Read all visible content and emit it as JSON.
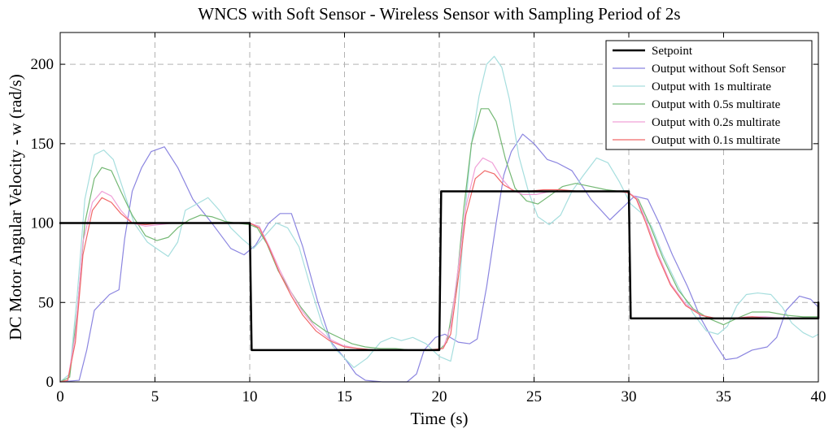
{
  "chart_data": {
    "type": "line",
    "title": "WNCS with Soft Sensor - Wireless Sensor with Sampling Period of 2s",
    "xlabel": "Time (s)",
    "ylabel": "DC Motor Angular Velocity - w (rad/s)",
    "xlim": [
      0,
      40
    ],
    "ylim": [
      0,
      220
    ],
    "xticks": [
      0,
      5,
      10,
      15,
      20,
      25,
      30,
      35,
      40
    ],
    "yticks": [
      0,
      50,
      100,
      150,
      200
    ],
    "grid": true,
    "legend_position": "top-right",
    "series": [
      {
        "name": "Setpoint",
        "color": "#000000",
        "points": [
          [
            0,
            100
          ],
          [
            10,
            100
          ],
          [
            10.1,
            20
          ],
          [
            20,
            20
          ],
          [
            20.1,
            120
          ],
          [
            30,
            120
          ],
          [
            30.1,
            40
          ],
          [
            40,
            40
          ],
          [
            40,
            50
          ]
        ]
      },
      {
        "name": "Output without Soft Sensor",
        "color": "#8b85e0",
        "points": [
          [
            0,
            0
          ],
          [
            1,
            1
          ],
          [
            1.4,
            20
          ],
          [
            1.8,
            45
          ],
          [
            2.2,
            50
          ],
          [
            2.6,
            55
          ],
          [
            3.1,
            58
          ],
          [
            3.4,
            90
          ],
          [
            3.8,
            120
          ],
          [
            4.3,
            135
          ],
          [
            4.8,
            145
          ],
          [
            5.5,
            148
          ],
          [
            6.2,
            135
          ],
          [
            7,
            115
          ],
          [
            8,
            100
          ],
          [
            9,
            84
          ],
          [
            9.7,
            80
          ],
          [
            10.3,
            86
          ],
          [
            11,
            100
          ],
          [
            11.6,
            106
          ],
          [
            12.2,
            106
          ],
          [
            12.8,
            85
          ],
          [
            13.6,
            50
          ],
          [
            14.3,
            25
          ],
          [
            15,
            15
          ],
          [
            15.6,
            5
          ],
          [
            16.1,
            1
          ],
          [
            17,
            0
          ],
          [
            18.3,
            0
          ],
          [
            18.8,
            5
          ],
          [
            19.2,
            20
          ],
          [
            19.8,
            28
          ],
          [
            20.3,
            30
          ],
          [
            21,
            25
          ],
          [
            21.6,
            24
          ],
          [
            22,
            27
          ],
          [
            22.5,
            60
          ],
          [
            23,
            100
          ],
          [
            23.4,
            130
          ],
          [
            23.8,
            145
          ],
          [
            24.4,
            156
          ],
          [
            25,
            150
          ],
          [
            25.7,
            140
          ],
          [
            26.2,
            138
          ],
          [
            27,
            133
          ],
          [
            28,
            115
          ],
          [
            29,
            102
          ],
          [
            29.7,
            110
          ],
          [
            30.3,
            117
          ],
          [
            31,
            115
          ],
          [
            31.6,
            100
          ],
          [
            32.3,
            80
          ],
          [
            33.1,
            60
          ],
          [
            33.8,
            40
          ],
          [
            34.5,
            25
          ],
          [
            35.1,
            14
          ],
          [
            35.7,
            15
          ],
          [
            36.5,
            20
          ],
          [
            37.3,
            22
          ],
          [
            37.8,
            28
          ],
          [
            38.3,
            45
          ],
          [
            39,
            54
          ],
          [
            39.6,
            52
          ],
          [
            40,
            47
          ]
        ]
      },
      {
        "name": "Output with 1s multirate",
        "color": "#a6dede",
        "points": [
          [
            0,
            0
          ],
          [
            0.5,
            5
          ],
          [
            0.9,
            55
          ],
          [
            1.3,
            115
          ],
          [
            1.8,
            143
          ],
          [
            2.3,
            146
          ],
          [
            2.8,
            140
          ],
          [
            3.3,
            122
          ],
          [
            3.9,
            100
          ],
          [
            4.6,
            88
          ],
          [
            5.2,
            83
          ],
          [
            5.7,
            79
          ],
          [
            6.2,
            88
          ],
          [
            6.6,
            108
          ],
          [
            7.2,
            112
          ],
          [
            7.8,
            116
          ],
          [
            8.4,
            108
          ],
          [
            9,
            97
          ],
          [
            9.6,
            90
          ],
          [
            10.2,
            84
          ],
          [
            10.8,
            92
          ],
          [
            11.4,
            100
          ],
          [
            12,
            97
          ],
          [
            12.6,
            85
          ],
          [
            13.2,
            60
          ],
          [
            13.8,
            37
          ],
          [
            14.4,
            22
          ],
          [
            15,
            15
          ],
          [
            15.5,
            9
          ],
          [
            16.2,
            15
          ],
          [
            16.9,
            25
          ],
          [
            17.5,
            28
          ],
          [
            18,
            26
          ],
          [
            18.6,
            28
          ],
          [
            19.3,
            24
          ],
          [
            20,
            16
          ],
          [
            20.6,
            13
          ],
          [
            20.9,
            30
          ],
          [
            21.3,
            100
          ],
          [
            21.7,
            150
          ],
          [
            22.1,
            180
          ],
          [
            22.5,
            200
          ],
          [
            22.9,
            205
          ],
          [
            23.3,
            198
          ],
          [
            23.7,
            178
          ],
          [
            24.2,
            142
          ],
          [
            24.7,
            120
          ],
          [
            25.2,
            104
          ],
          [
            25.8,
            99
          ],
          [
            26.4,
            105
          ],
          [
            27,
            120
          ],
          [
            27.6,
            130
          ],
          [
            28.3,
            141
          ],
          [
            28.9,
            138
          ],
          [
            29.5,
            126
          ],
          [
            30.1,
            112
          ],
          [
            30.6,
            107
          ],
          [
            31.2,
            98
          ],
          [
            31.8,
            80
          ],
          [
            32.6,
            60
          ],
          [
            33.4,
            43
          ],
          [
            34.1,
            32
          ],
          [
            34.7,
            30
          ],
          [
            35.2,
            35
          ],
          [
            35.7,
            48
          ],
          [
            36.2,
            55
          ],
          [
            36.8,
            56
          ],
          [
            37.5,
            55
          ],
          [
            38.1,
            47
          ],
          [
            38.6,
            37
          ],
          [
            39.2,
            31
          ],
          [
            39.7,
            28
          ],
          [
            40,
            30
          ]
        ]
      },
      {
        "name": "Output with 0.5s multirate",
        "color": "#74b874",
        "points": [
          [
            0,
            0
          ],
          [
            0.5,
            3
          ],
          [
            0.9,
            45
          ],
          [
            1.3,
            100
          ],
          [
            1.8,
            128
          ],
          [
            2.2,
            135
          ],
          [
            2.7,
            133
          ],
          [
            3.2,
            120
          ],
          [
            3.8,
            105
          ],
          [
            4.5,
            92
          ],
          [
            5.1,
            89
          ],
          [
            5.7,
            91
          ],
          [
            6.2,
            97
          ],
          [
            6.8,
            102
          ],
          [
            7.4,
            105
          ],
          [
            8,
            104
          ],
          [
            8.7,
            101
          ],
          [
            9.3,
            100
          ],
          [
            10,
            99
          ],
          [
            10.4,
            97
          ],
          [
            10.9,
            87
          ],
          [
            11.5,
            70
          ],
          [
            12.1,
            58
          ],
          [
            12.7,
            47
          ],
          [
            13.3,
            38
          ],
          [
            14,
            32
          ],
          [
            14.7,
            28
          ],
          [
            15.4,
            24
          ],
          [
            16.1,
            22
          ],
          [
            16.9,
            21
          ],
          [
            17.7,
            21
          ],
          [
            18.5,
            20
          ],
          [
            19.3,
            20
          ],
          [
            20,
            20
          ],
          [
            20.4,
            25
          ],
          [
            20.9,
            60
          ],
          [
            21.3,
            110
          ],
          [
            21.7,
            150
          ],
          [
            22.2,
            172
          ],
          [
            22.6,
            172
          ],
          [
            23,
            164
          ],
          [
            23.5,
            140
          ],
          [
            24,
            122
          ],
          [
            24.6,
            114
          ],
          [
            25.2,
            112
          ],
          [
            25.8,
            117
          ],
          [
            26.5,
            123
          ],
          [
            27.2,
            125
          ],
          [
            28,
            123
          ],
          [
            28.8,
            121
          ],
          [
            29.5,
            120
          ],
          [
            30,
            119
          ],
          [
            30.5,
            115
          ],
          [
            31.1,
            99
          ],
          [
            31.8,
            78
          ],
          [
            32.6,
            58
          ],
          [
            33.4,
            46
          ],
          [
            34.2,
            40
          ],
          [
            35,
            36
          ],
          [
            35.7,
            40
          ],
          [
            36.5,
            44
          ],
          [
            37.4,
            44
          ],
          [
            38.3,
            42
          ],
          [
            39.2,
            41
          ],
          [
            40,
            41
          ]
        ]
      },
      {
        "name": "Output with 0.2s multirate",
        "color": "#f0a0d8",
        "points": [
          [
            0,
            0
          ],
          [
            0.4,
            1
          ],
          [
            0.8,
            30
          ],
          [
            1.2,
            88
          ],
          [
            1.7,
            113
          ],
          [
            2.2,
            120
          ],
          [
            2.7,
            117
          ],
          [
            3.2,
            108
          ],
          [
            3.8,
            100
          ],
          [
            4.5,
            98
          ],
          [
            5.2,
            99
          ],
          [
            6,
            100
          ],
          [
            7,
            100
          ],
          [
            8,
            100
          ],
          [
            9,
            100
          ],
          [
            10,
            100
          ],
          [
            10.5,
            98
          ],
          [
            11,
            86
          ],
          [
            11.6,
            70
          ],
          [
            12.2,
            56
          ],
          [
            12.8,
            44
          ],
          [
            13.5,
            34
          ],
          [
            14.2,
            27
          ],
          [
            14.9,
            23
          ],
          [
            15.7,
            21
          ],
          [
            16.5,
            20
          ],
          [
            17.5,
            20
          ],
          [
            18.5,
            20
          ],
          [
            19.5,
            20
          ],
          [
            20.2,
            21
          ],
          [
            20.6,
            35
          ],
          [
            21,
            72
          ],
          [
            21.4,
            110
          ],
          [
            21.9,
            135
          ],
          [
            22.3,
            141
          ],
          [
            22.8,
            138
          ],
          [
            23.3,
            128
          ],
          [
            23.8,
            121
          ],
          [
            24.4,
            118
          ],
          [
            25.1,
            118
          ],
          [
            25.9,
            120
          ],
          [
            26.7,
            120
          ],
          [
            27.6,
            120
          ],
          [
            28.5,
            120
          ],
          [
            29.4,
            120
          ],
          [
            30,
            119
          ],
          [
            30.4,
            116
          ],
          [
            30.9,
            102
          ],
          [
            31.5,
            82
          ],
          [
            32.2,
            62
          ],
          [
            33,
            49
          ],
          [
            33.8,
            42
          ],
          [
            34.6,
            40
          ],
          [
            35.4,
            40
          ],
          [
            36.3,
            41
          ],
          [
            37.2,
            41
          ],
          [
            38.1,
            40
          ],
          [
            39,
            40
          ],
          [
            40,
            40
          ]
        ]
      },
      {
        "name": "Output with 0.1s multirate",
        "color": "#f06868",
        "points": [
          [
            0,
            0
          ],
          [
            0.4,
            1
          ],
          [
            0.8,
            25
          ],
          [
            1.2,
            80
          ],
          [
            1.7,
            108
          ],
          [
            2.2,
            116
          ],
          [
            2.7,
            113
          ],
          [
            3.2,
            106
          ],
          [
            3.8,
            100
          ],
          [
            4.5,
            99
          ],
          [
            5.3,
            100
          ],
          [
            6.5,
            100
          ],
          [
            8,
            100
          ],
          [
            9,
            100
          ],
          [
            10,
            100
          ],
          [
            10.5,
            97
          ],
          [
            11,
            85
          ],
          [
            11.6,
            68
          ],
          [
            12.2,
            54
          ],
          [
            12.8,
            42
          ],
          [
            13.5,
            32
          ],
          [
            14.2,
            26
          ],
          [
            15,
            22
          ],
          [
            15.8,
            21
          ],
          [
            16.7,
            20
          ],
          [
            18,
            20
          ],
          [
            19.3,
            20
          ],
          [
            20.2,
            21
          ],
          [
            20.6,
            30
          ],
          [
            21,
            65
          ],
          [
            21.4,
            105
          ],
          [
            21.9,
            128
          ],
          [
            22.4,
            133
          ],
          [
            22.9,
            131
          ],
          [
            23.4,
            124
          ],
          [
            24,
            120
          ],
          [
            24.7,
            120
          ],
          [
            25.5,
            121
          ],
          [
            26.4,
            121
          ],
          [
            27.4,
            120
          ],
          [
            28.5,
            120
          ],
          [
            29.5,
            120
          ],
          [
            30,
            119
          ],
          [
            30.4,
            115
          ],
          [
            30.9,
            100
          ],
          [
            31.5,
            80
          ],
          [
            32.2,
            61
          ],
          [
            33,
            48
          ],
          [
            33.8,
            42
          ],
          [
            34.6,
            40
          ],
          [
            35.5,
            40
          ],
          [
            36.5,
            41
          ],
          [
            37.5,
            40
          ],
          [
            38.5,
            40
          ],
          [
            40,
            40
          ]
        ]
      }
    ]
  }
}
